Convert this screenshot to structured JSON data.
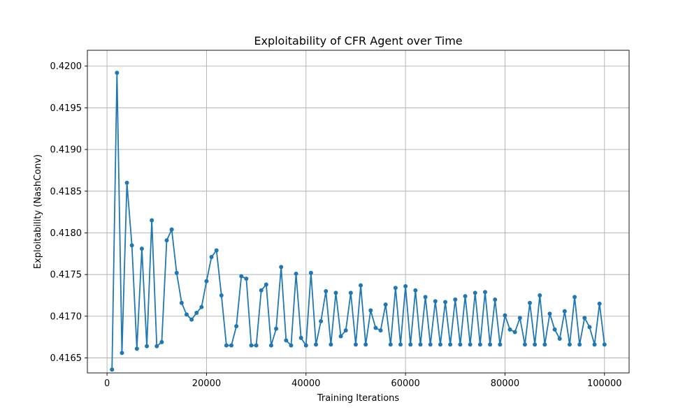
{
  "chart_data": {
    "type": "line",
    "title": "Exploitability of CFR Agent over Time",
    "xlabel": "Training Iterations",
    "ylabel": "Exploitability (NashConv)",
    "xlim": [
      -3950,
      104950
    ],
    "ylim": [
      0.41632,
      0.42019
    ],
    "grid": true,
    "legend": "none",
    "color": "#1f77b4",
    "x_ticks": [
      0,
      20000,
      40000,
      60000,
      80000,
      100000
    ],
    "x_tick_labels": [
      "0",
      "20000",
      "40000",
      "60000",
      "80000",
      "100000"
    ],
    "y_ticks": [
      0.4165,
      0.417,
      0.4175,
      0.418,
      0.4185,
      0.419,
      0.4195,
      0.42
    ],
    "y_tick_labels": [
      "0.4165",
      "0.4170",
      "0.4175",
      "0.4180",
      "0.4185",
      "0.4190",
      "0.4195",
      "0.4200"
    ],
    "series": [
      {
        "name": "Exploitability",
        "x": [
          1000,
          2000,
          3000,
          4000,
          5000,
          6000,
          7000,
          8000,
          9000,
          10000,
          11000,
          12000,
          13000,
          14000,
          15000,
          16000,
          17000,
          18000,
          19000,
          20000,
          21000,
          22000,
          23000,
          24000,
          25000,
          26000,
          27000,
          28000,
          29000,
          30000,
          31000,
          32000,
          33000,
          34000,
          35000,
          36000,
          37000,
          38000,
          39000,
          40000,
          41000,
          42000,
          43000,
          44000,
          45000,
          46000,
          47000,
          48000,
          49000,
          50000,
          51000,
          52000,
          53000,
          54000,
          55000,
          56000,
          57000,
          58000,
          59000,
          60000,
          61000,
          62000,
          63000,
          64000,
          65000,
          66000,
          67000,
          68000,
          69000,
          70000,
          71000,
          72000,
          73000,
          74000,
          75000,
          76000,
          77000,
          78000,
          79000,
          80000,
          81000,
          82000,
          83000,
          84000,
          85000,
          86000,
          87000,
          88000,
          89000,
          90000,
          91000,
          92000,
          93000,
          94000,
          95000,
          96000,
          97000,
          98000,
          99000,
          100000
        ],
        "values": [
          0.41636,
          0.41992,
          0.41656,
          0.4186,
          0.41785,
          0.41661,
          0.41781,
          0.41664,
          0.41815,
          0.41664,
          0.41669,
          0.41791,
          0.41804,
          0.41752,
          0.41716,
          0.41702,
          0.41696,
          0.41704,
          0.41711,
          0.41742,
          0.41771,
          0.41779,
          0.41725,
          0.41665,
          0.41665,
          0.41688,
          0.41748,
          0.41745,
          0.41665,
          0.41665,
          0.41731,
          0.41738,
          0.41665,
          0.41685,
          0.41759,
          0.41671,
          0.41665,
          0.41751,
          0.41674,
          0.41665,
          0.41752,
          0.41666,
          0.41694,
          0.4173,
          0.41666,
          0.41728,
          0.41676,
          0.41683,
          0.41728,
          0.41666,
          0.41737,
          0.41666,
          0.41707,
          0.41686,
          0.41683,
          0.41714,
          0.41666,
          0.41734,
          0.41666,
          0.41736,
          0.41666,
          0.41731,
          0.41666,
          0.41723,
          0.41666,
          0.41718,
          0.41666,
          0.41717,
          0.41666,
          0.4172,
          0.41666,
          0.41724,
          0.41666,
          0.41728,
          0.41666,
          0.41729,
          0.41666,
          0.4172,
          0.41666,
          0.41701,
          0.41684,
          0.41681,
          0.41698,
          0.41666,
          0.41716,
          0.41666,
          0.41725,
          0.41666,
          0.41703,
          0.41684,
          0.41673,
          0.41706,
          0.41666,
          0.41723,
          0.41666,
          0.41698,
          0.41687,
          0.41666,
          0.41715,
          0.41666
        ]
      }
    ]
  }
}
